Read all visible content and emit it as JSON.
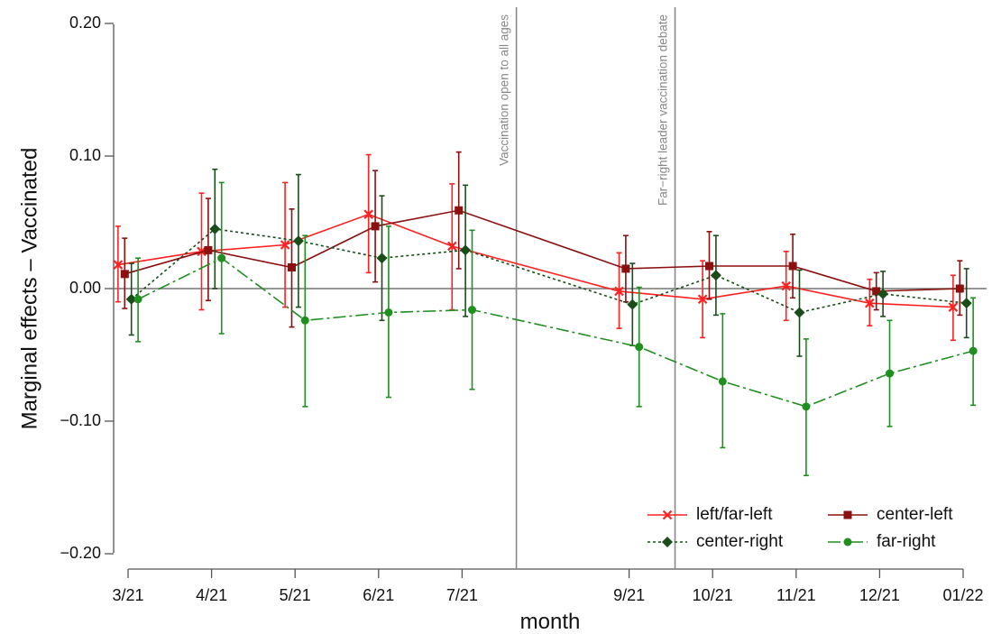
{
  "chart_data": {
    "type": "line",
    "xlabel": "month",
    "ylabel": "Marginal effects – Vaccinated",
    "categories": [
      "3/21",
      "4/21",
      "5/21",
      "6/21",
      "7/21",
      "9/21",
      "10/21",
      "11/21",
      "12/21",
      "01/22"
    ],
    "ylim": [
      -0.2,
      0.2
    ],
    "yticks": [
      -0.2,
      -0.1,
      0.0,
      0.1,
      0.2
    ],
    "ytick_labels": [
      "−0.20",
      "−0.10",
      "0.00",
      "0.10",
      "0.20"
    ],
    "zero_line": true,
    "grid": false,
    "legend_position": "bottom-right",
    "annotations": [
      {
        "x": 7.65,
        "text": "Vaccination open to all ages"
      },
      {
        "x": 9.55,
        "text": "Far−right leader vaccination debate"
      }
    ],
    "series": [
      {
        "name": "left/far-left",
        "color": "#ff2020",
        "marker": "cross",
        "dash": "solid",
        "offset": -0.12,
        "points": [
          {
            "x": 3,
            "y": 0.018,
            "lo": -0.01,
            "hi": 0.047
          },
          {
            "x": 4,
            "y": 0.028,
            "lo": -0.016,
            "hi": 0.072
          },
          {
            "x": 5,
            "y": 0.033,
            "lo": -0.014,
            "hi": 0.08
          },
          {
            "x": 6,
            "y": 0.056,
            "lo": 0.012,
            "hi": 0.101
          },
          {
            "x": 7,
            "y": 0.032,
            "lo": -0.016,
            "hi": 0.079
          },
          {
            "x": 9,
            "y": -0.002,
            "lo": -0.03,
            "hi": 0.027
          },
          {
            "x": 10,
            "y": -0.008,
            "lo": -0.037,
            "hi": 0.021
          },
          {
            "x": 11,
            "y": 0.002,
            "lo": -0.024,
            "hi": 0.028
          },
          {
            "x": 12,
            "y": -0.011,
            "lo": -0.028,
            "hi": 0.007
          },
          {
            "x": 13,
            "y": -0.014,
            "lo": -0.039,
            "hi": 0.01
          }
        ]
      },
      {
        "name": "center-left",
        "color": "#8b1010",
        "marker": "square",
        "dash": "solid",
        "offset": -0.04,
        "points": [
          {
            "x": 3,
            "y": 0.011,
            "lo": -0.015,
            "hi": 0.038
          },
          {
            "x": 4,
            "y": 0.029,
            "lo": -0.009,
            "hi": 0.068
          },
          {
            "x": 5,
            "y": 0.016,
            "lo": -0.029,
            "hi": 0.06
          },
          {
            "x": 6,
            "y": 0.047,
            "lo": 0.005,
            "hi": 0.089
          },
          {
            "x": 7,
            "y": 0.059,
            "lo": 0.015,
            "hi": 0.103
          },
          {
            "x": 9,
            "y": 0.015,
            "lo": -0.01,
            "hi": 0.04
          },
          {
            "x": 10,
            "y": 0.017,
            "lo": -0.008,
            "hi": 0.043
          },
          {
            "x": 11,
            "y": 0.017,
            "lo": -0.007,
            "hi": 0.041
          },
          {
            "x": 12,
            "y": -0.002,
            "lo": -0.016,
            "hi": 0.012
          },
          {
            "x": 13,
            "y": 0.0,
            "lo": -0.02,
            "hi": 0.021
          }
        ]
      },
      {
        "name": "center-right",
        "color": "#1a4d1a",
        "marker": "diamond",
        "dash": "3,3",
        "offset": 0.04,
        "points": [
          {
            "x": 3,
            "y": -0.008,
            "lo": -0.035,
            "hi": 0.019
          },
          {
            "x": 4,
            "y": 0.045,
            "lo": 0.0,
            "hi": 0.09
          },
          {
            "x": 5,
            "y": 0.036,
            "lo": -0.014,
            "hi": 0.086
          },
          {
            "x": 6,
            "y": 0.023,
            "lo": -0.024,
            "hi": 0.07
          },
          {
            "x": 7,
            "y": 0.029,
            "lo": -0.021,
            "hi": 0.078
          },
          {
            "x": 9,
            "y": -0.012,
            "lo": -0.043,
            "hi": 0.019
          },
          {
            "x": 10,
            "y": 0.01,
            "lo": -0.02,
            "hi": 0.04
          },
          {
            "x": 11,
            "y": -0.018,
            "lo": -0.051,
            "hi": 0.014
          },
          {
            "x": 12,
            "y": -0.004,
            "lo": -0.021,
            "hi": 0.013
          },
          {
            "x": 13,
            "y": -0.011,
            "lo": -0.037,
            "hi": 0.015
          }
        ]
      },
      {
        "name": "far-right",
        "color": "#1f8f1f",
        "marker": "circle",
        "dash": "14,4,3,4",
        "offset": 0.12,
        "points": [
          {
            "x": 3,
            "y": -0.008,
            "lo": -0.04,
            "hi": 0.023
          },
          {
            "x": 4,
            "y": 0.023,
            "lo": -0.034,
            "hi": 0.08
          },
          {
            "x": 5,
            "y": -0.024,
            "lo": -0.089,
            "hi": 0.04
          },
          {
            "x": 6,
            "y": -0.018,
            "lo": -0.082,
            "hi": 0.047
          },
          {
            "x": 7,
            "y": -0.016,
            "lo": -0.076,
            "hi": 0.044
          },
          {
            "x": 9,
            "y": -0.044,
            "lo": -0.089,
            "hi": 0.001
          },
          {
            "x": 10,
            "y": -0.07,
            "lo": -0.12,
            "hi": -0.019
          },
          {
            "x": 11,
            "y": -0.089,
            "lo": -0.141,
            "hi": -0.038
          },
          {
            "x": 12,
            "y": -0.064,
            "lo": -0.104,
            "hi": -0.024
          },
          {
            "x": 13,
            "y": -0.047,
            "lo": -0.088,
            "hi": -0.007
          }
        ]
      }
    ]
  }
}
